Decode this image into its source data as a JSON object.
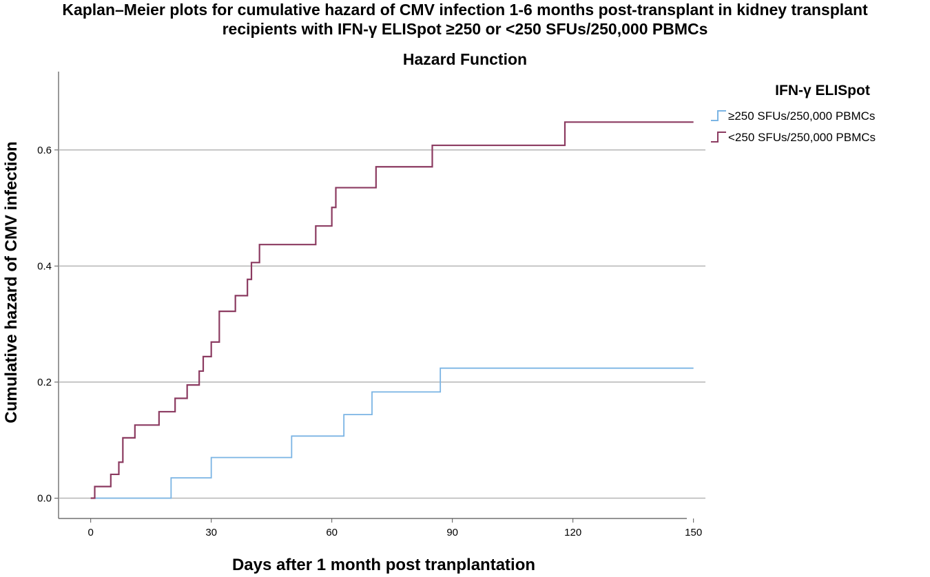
{
  "figure": {
    "title_line1": "Kaplan–Meier plots for cumulative hazard of CMV infection 1-6 months post-transplant in kidney transplant",
    "title_line2": "recipients with IFN-γ ELISpot ≥250 or <250 SFUs/250,000 PBMCs"
  },
  "chart_data": {
    "type": "line",
    "step": true,
    "title": "Hazard Function",
    "xlabel": "Days after 1 month post tranplantation",
    "ylabel": "Cumulative hazard of CMV infection",
    "xlim": [
      -8,
      154
    ],
    "ylim": [
      -0.035,
      0.735
    ],
    "xticks": [
      0,
      30,
      60,
      90,
      120,
      150
    ],
    "yticks": [
      0.0,
      0.2,
      0.4,
      0.6
    ],
    "ytick_labels": [
      "0.0",
      "0.2",
      "0.4",
      "0.6"
    ],
    "grid": "horizontal",
    "legend": {
      "title": "IFN-γ ELISpot",
      "placement": "right"
    },
    "series": [
      {
        "name": "≥250 SFUs/250,000 PBMCs",
        "color": "#7ab4e4",
        "x": [
          1,
          20,
          30,
          50,
          63,
          70,
          87,
          150
        ],
        "y": [
          0.0,
          0.035,
          0.07,
          0.107,
          0.144,
          0.183,
          0.224,
          0.224
        ]
      },
      {
        "name": "<250 SFUs/250,000 PBMCs",
        "color": "#8b3a60",
        "x": [
          0,
          1,
          5,
          7,
          8,
          11,
          17,
          21,
          24,
          27,
          28,
          30,
          32,
          36,
          39,
          40,
          42,
          56,
          60,
          61,
          71,
          85,
          118,
          150
        ],
        "y": [
          0.0,
          0.02,
          0.041,
          0.062,
          0.104,
          0.126,
          0.149,
          0.172,
          0.195,
          0.219,
          0.244,
          0.269,
          0.322,
          0.349,
          0.377,
          0.406,
          0.437,
          0.469,
          0.501,
          0.535,
          0.571,
          0.608,
          0.648,
          0.648
        ]
      }
    ]
  }
}
